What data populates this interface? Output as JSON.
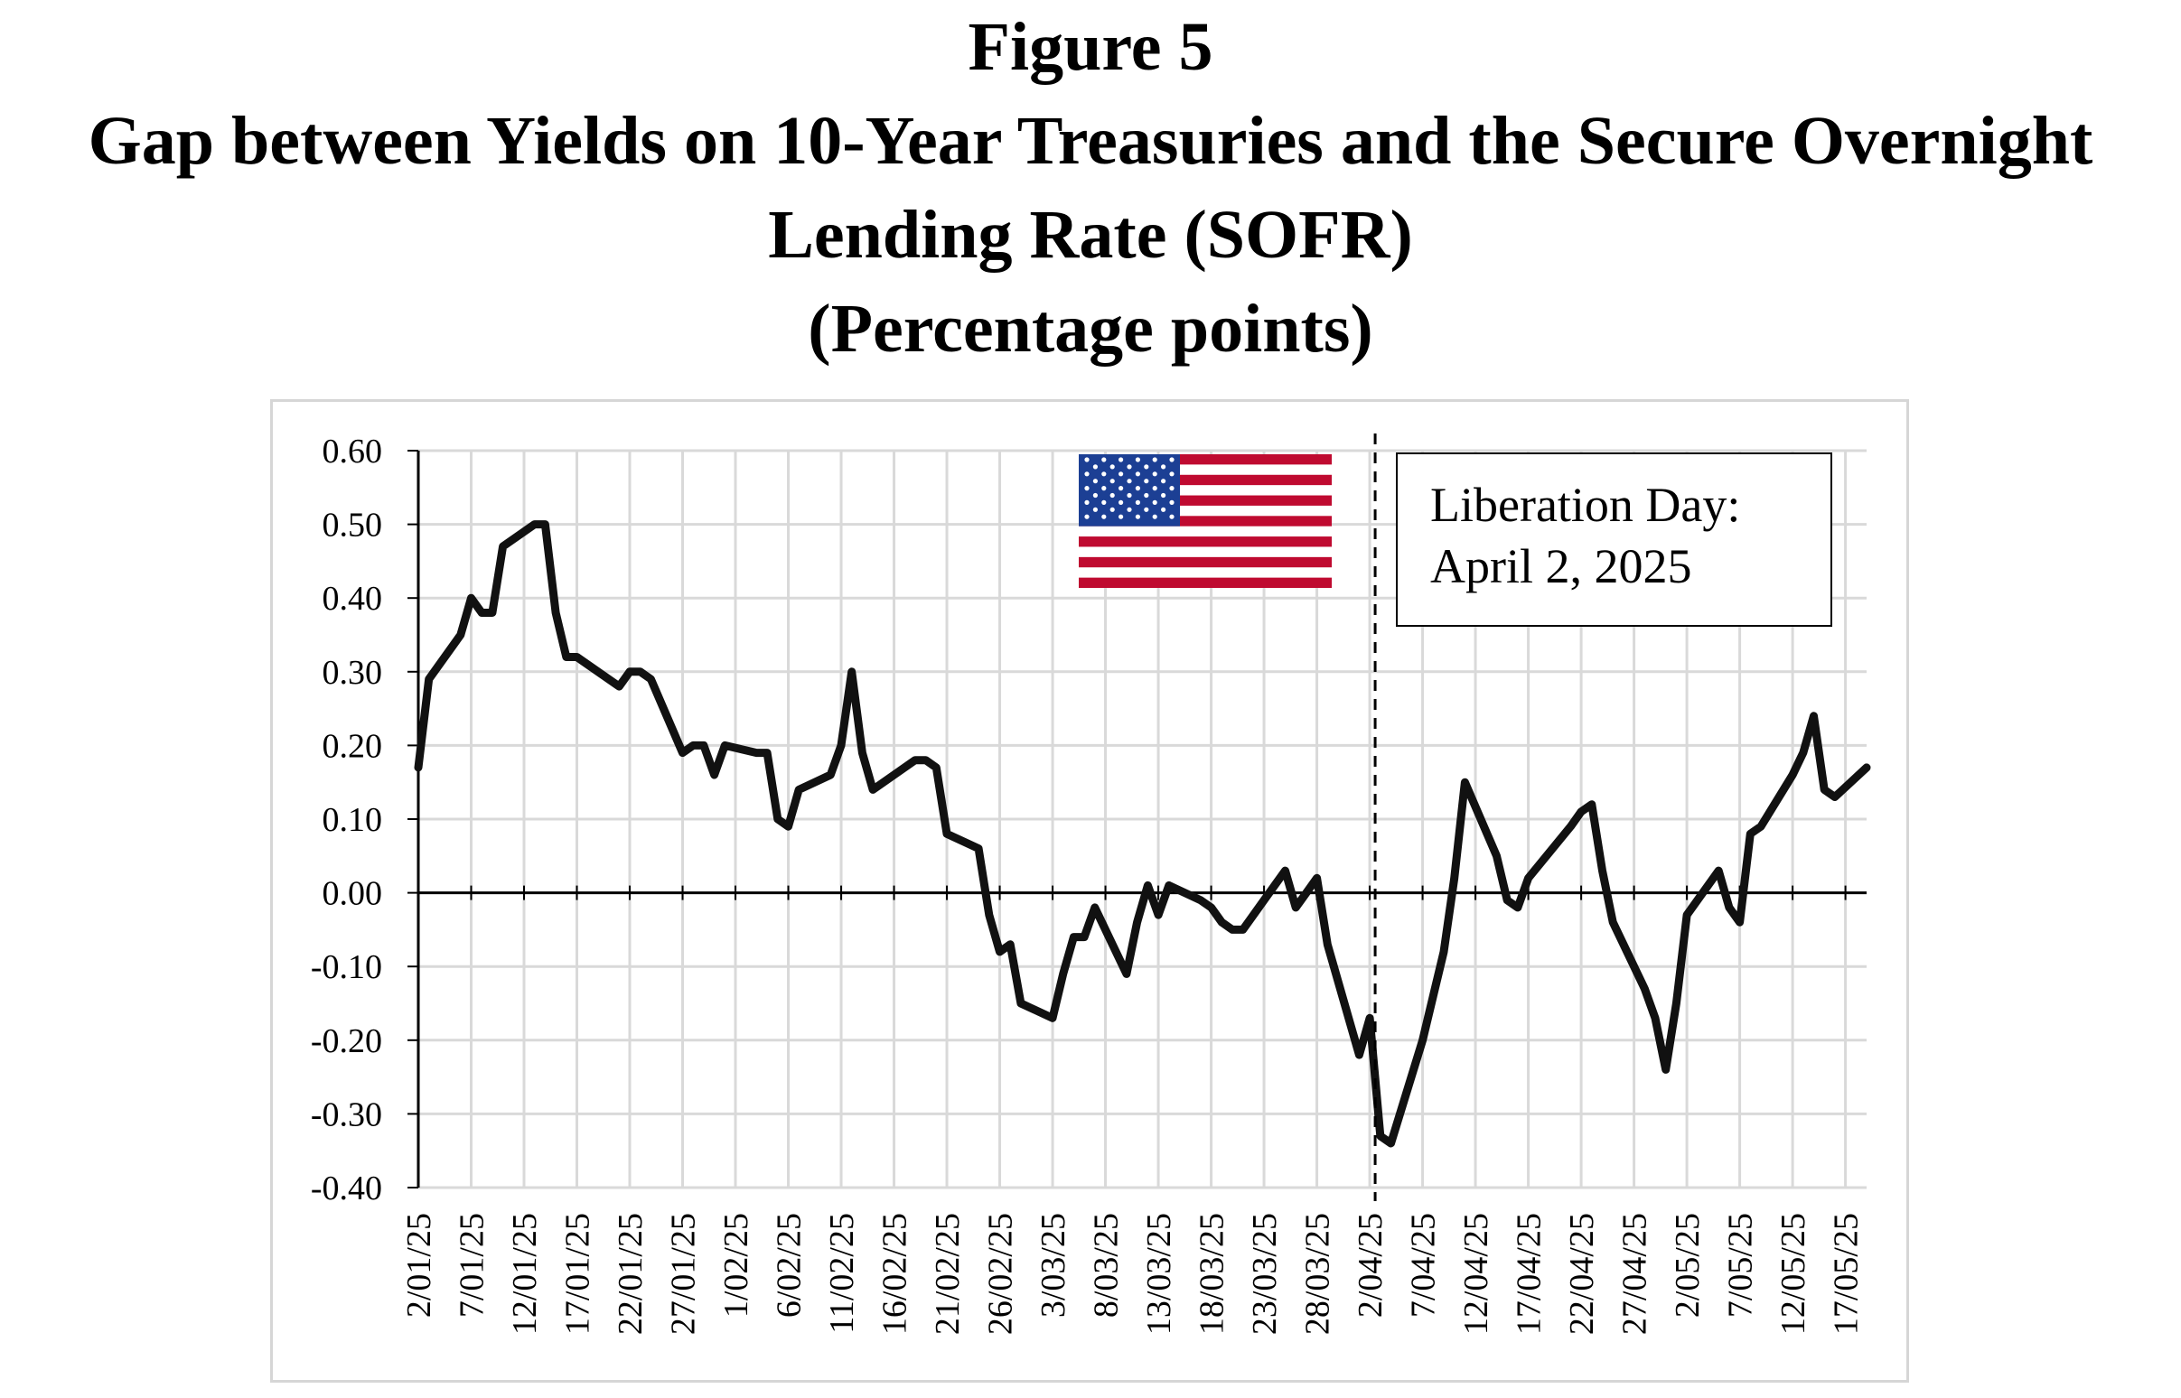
{
  "header": {
    "figure_label": "Figure 5",
    "title_line1": "Gap between Yields on 10-Year Treasuries and the Secure Overnight",
    "title_line2": "Lending Rate (SOFR)",
    "subtitle": "(Percentage points)"
  },
  "annotation": {
    "line1": "Liberation Day:",
    "line2": "April 2, 2025",
    "marker_date": "2/04/25"
  },
  "flag": {
    "icon": "us-flag-icon",
    "red": "#bf0a30",
    "blue": "#1c3f94",
    "white": "#ffffff"
  },
  "chart_data": {
    "type": "line",
    "title": "",
    "xlabel": "",
    "ylabel": "",
    "ylim": [
      -0.4,
      0.6
    ],
    "grid": true,
    "legend": "none",
    "line_color": "#111111",
    "y_ticks": [
      "0.60",
      "0.50",
      "0.40",
      "0.30",
      "0.20",
      "0.10",
      "0.00",
      "-0.10",
      "-0.20",
      "-0.30",
      "-0.40"
    ],
    "x_tick_labels": [
      "2/01/25",
      "7/01/25",
      "12/01/25",
      "17/01/25",
      "22/01/25",
      "27/01/25",
      "1/02/25",
      "6/02/25",
      "11/02/25",
      "16/02/25",
      "21/02/25",
      "26/02/25",
      "3/03/25",
      "8/03/25",
      "13/03/25",
      "18/03/25",
      "23/03/25",
      "28/03/25",
      "2/04/25",
      "7/04/25",
      "12/04/25",
      "17/04/25",
      "22/04/25",
      "27/04/25",
      "2/05/25",
      "7/05/25",
      "12/05/25",
      "17/05/25"
    ],
    "series": [
      {
        "values": [
          [
            "2/01/25",
            0.17
          ],
          [
            "3/01/25",
            0.29
          ],
          [
            "6/01/25",
            0.35
          ],
          [
            "7/01/25",
            0.4
          ],
          [
            "8/01/25",
            0.38
          ],
          [
            "9/01/25",
            0.38
          ],
          [
            "10/01/25",
            0.47
          ],
          [
            "13/01/25",
            0.5
          ],
          [
            "14/01/25",
            0.5
          ],
          [
            "15/01/25",
            0.38
          ],
          [
            "16/01/25",
            0.32
          ],
          [
            "17/01/25",
            0.32
          ],
          [
            "21/01/25",
            0.28
          ],
          [
            "22/01/25",
            0.3
          ],
          [
            "23/01/25",
            0.3
          ],
          [
            "24/01/25",
            0.29
          ],
          [
            "27/01/25",
            0.19
          ],
          [
            "28/01/25",
            0.2
          ],
          [
            "29/01/25",
            0.2
          ],
          [
            "30/01/25",
            0.16
          ],
          [
            "31/01/25",
            0.2
          ],
          [
            "3/02/25",
            0.19
          ],
          [
            "4/02/25",
            0.19
          ],
          [
            "5/02/25",
            0.1
          ],
          [
            "6/02/25",
            0.09
          ],
          [
            "7/02/25",
            0.14
          ],
          [
            "10/02/25",
            0.16
          ],
          [
            "11/02/25",
            0.2
          ],
          [
            "12/02/25",
            0.3
          ],
          [
            "13/02/25",
            0.19
          ],
          [
            "14/02/25",
            0.14
          ],
          [
            "18/02/25",
            0.18
          ],
          [
            "19/02/25",
            0.18
          ],
          [
            "20/02/25",
            0.17
          ],
          [
            "21/02/25",
            0.08
          ],
          [
            "24/02/25",
            0.06
          ],
          [
            "25/02/25",
            -0.03
          ],
          [
            "26/02/25",
            -0.08
          ],
          [
            "27/02/25",
            -0.07
          ],
          [
            "28/02/25",
            -0.15
          ],
          [
            "3/03/25",
            -0.17
          ],
          [
            "4/03/25",
            -0.11
          ],
          [
            "5/03/25",
            -0.06
          ],
          [
            "6/03/25",
            -0.06
          ],
          [
            "7/03/25",
            -0.02
          ],
          [
            "10/03/25",
            -0.11
          ],
          [
            "11/03/25",
            -0.04
          ],
          [
            "12/03/25",
            0.01
          ],
          [
            "13/03/25",
            -0.03
          ],
          [
            "14/03/25",
            0.01
          ],
          [
            "17/03/25",
            -0.01
          ],
          [
            "18/03/25",
            -0.02
          ],
          [
            "19/03/25",
            -0.04
          ],
          [
            "20/03/25",
            -0.05
          ],
          [
            "21/03/25",
            -0.05
          ],
          [
            "24/03/25",
            0.01
          ],
          [
            "25/03/25",
            0.03
          ],
          [
            "26/03/25",
            -0.02
          ],
          [
            "27/03/25",
            0.0
          ],
          [
            "28/03/25",
            0.02
          ],
          [
            "29/03/25",
            -0.07
          ],
          [
            "1/04/25",
            -0.22
          ],
          [
            "2/04/25",
            -0.17
          ],
          [
            "3/04/25",
            -0.33
          ],
          [
            "4/04/25",
            -0.34
          ],
          [
            "7/04/25",
            -0.2
          ],
          [
            "8/04/25",
            -0.14
          ],
          [
            "9/04/25",
            -0.08
          ],
          [
            "10/04/25",
            0.02
          ],
          [
            "11/04/25",
            0.15
          ],
          [
            "14/04/25",
            0.05
          ],
          [
            "15/04/25",
            -0.01
          ],
          [
            "16/04/25",
            -0.02
          ],
          [
            "17/04/25",
            0.02
          ],
          [
            "21/04/25",
            0.09
          ],
          [
            "22/04/25",
            0.11
          ],
          [
            "23/04/25",
            0.12
          ],
          [
            "24/04/25",
            0.03
          ],
          [
            "25/04/25",
            -0.04
          ],
          [
            "28/04/25",
            -0.13
          ],
          [
            "29/04/25",
            -0.17
          ],
          [
            "30/04/25",
            -0.24
          ],
          [
            "1/05/25",
            -0.15
          ],
          [
            "2/05/25",
            -0.03
          ],
          [
            "5/05/25",
            0.03
          ],
          [
            "6/05/25",
            -0.02
          ],
          [
            "7/05/25",
            -0.04
          ],
          [
            "8/05/25",
            0.08
          ],
          [
            "9/05/25",
            0.09
          ],
          [
            "12/05/25",
            0.16
          ],
          [
            "13/05/25",
            0.19
          ],
          [
            "14/05/25",
            0.24
          ],
          [
            "15/05/25",
            0.14
          ],
          [
            "16/05/25",
            0.13
          ],
          [
            "19/05/25",
            0.17
          ]
        ]
      }
    ]
  }
}
